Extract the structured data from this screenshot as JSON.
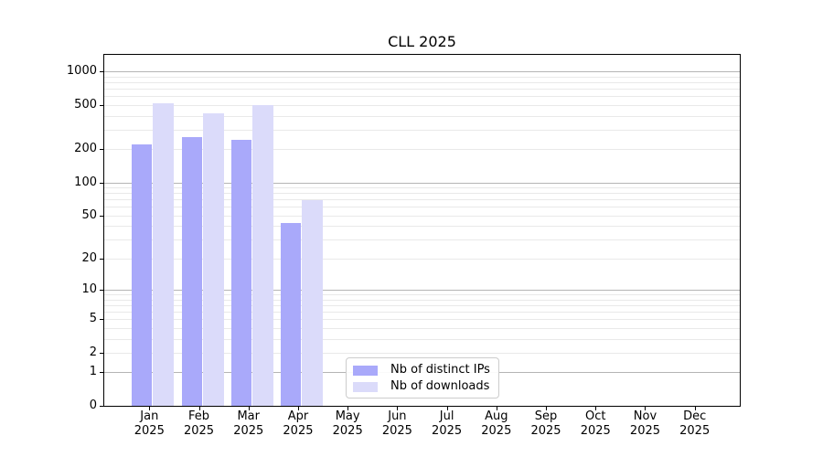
{
  "chart_data": {
    "type": "bar",
    "title": "CLL 2025",
    "scale": "log1p",
    "xlabel": "",
    "ylabel": "",
    "categories": [
      {
        "month": "Jan",
        "year": "2025"
      },
      {
        "month": "Feb",
        "year": "2025"
      },
      {
        "month": "Mar",
        "year": "2025"
      },
      {
        "month": "Apr",
        "year": "2025"
      },
      {
        "month": "May",
        "year": "2025"
      },
      {
        "month": "Jun",
        "year": "2025"
      },
      {
        "month": "Jul",
        "year": "2025"
      },
      {
        "month": "Aug",
        "year": "2025"
      },
      {
        "month": "Sep",
        "year": "2025"
      },
      {
        "month": "Oct",
        "year": "2025"
      },
      {
        "month": "Nov",
        "year": "2025"
      },
      {
        "month": "Dec",
        "year": "2025"
      }
    ],
    "series": [
      {
        "name": "Nb of distinct IPs",
        "color": "#a9a9fa",
        "values": [
          220,
          255,
          244,
          43,
          0,
          0,
          0,
          0,
          0,
          0,
          0,
          0
        ]
      },
      {
        "name": "Nb of downloads",
        "color": "#dbdbfa",
        "values": [
          515,
          418,
          502,
          69,
          0,
          0,
          0,
          0,
          0,
          0,
          0,
          0
        ]
      }
    ],
    "y_ticks": [
      0,
      1,
      2,
      5,
      10,
      20,
      50,
      100,
      200,
      500,
      1000
    ],
    "ylim": [
      0,
      1430
    ],
    "grid": {
      "major_values": [
        1,
        10,
        100,
        1000
      ],
      "major_color": "#b5b5b5",
      "minor_color": "#e9e9e9"
    },
    "legend_position": "bottom-center-inside"
  }
}
